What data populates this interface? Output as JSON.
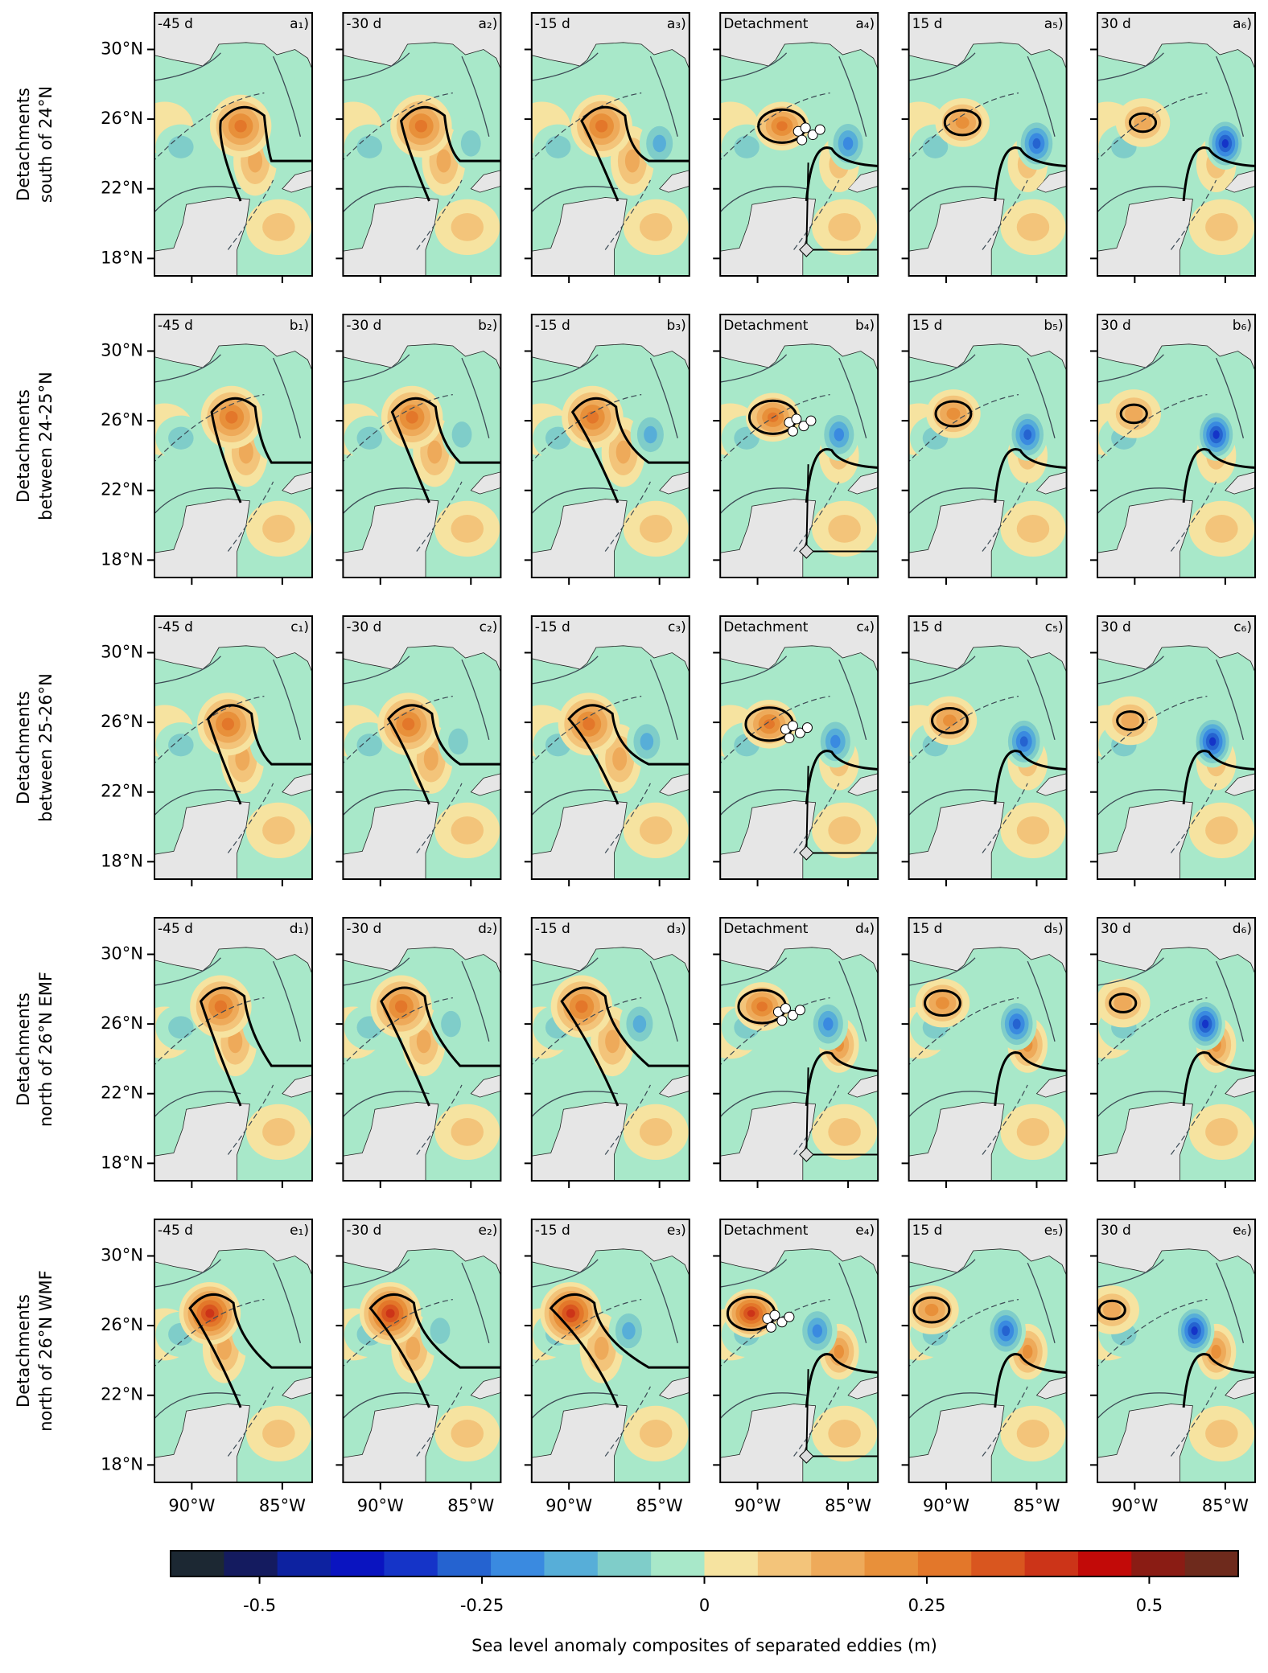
{
  "figure": {
    "rows": [
      {
        "label": [
          "Detachments",
          "south of 24°N"
        ],
        "times": [
          "-45 d",
          "-30 d",
          "-15 d",
          "Detachment",
          "15 d",
          "30 d"
        ],
        "panels": [
          "a₁)",
          "a₂)",
          "a₃)",
          "a₄)",
          "a₅)",
          "a₆)"
        ]
      },
      {
        "label": [
          "Detachments",
          "between 24-25°N"
        ],
        "times": [
          "-45 d",
          "-30 d",
          "-15 d",
          "Detachment",
          "15 d",
          "30 d"
        ],
        "panels": [
          "b₁)",
          "b₂)",
          "b₃)",
          "b₄)",
          "b₅)",
          "b₆)"
        ]
      },
      {
        "label": [
          "Detachments",
          "between 25-26°N"
        ],
        "times": [
          "-45 d",
          "-30 d",
          "-15 d",
          "Detachment",
          "15 d",
          "30 d"
        ],
        "panels": [
          "c₁)",
          "c₂)",
          "c₃)",
          "c₄)",
          "c₅)",
          "c₆)"
        ]
      },
      {
        "label": [
          "Detachments",
          "north of 26°N EMF"
        ],
        "times": [
          "-45 d",
          "-30 d",
          "-15 d",
          "Detachment",
          "15 d",
          "30 d"
        ],
        "panels": [
          "d₁)",
          "d₂)",
          "d₃)",
          "d₄)",
          "d₅)",
          "d₆)"
        ]
      },
      {
        "label": [
          "Detachments",
          "north of 26°N WMF"
        ],
        "times": [
          "-45 d",
          "-30 d",
          "-15 d",
          "Detachment",
          "15 d",
          "30 d"
        ],
        "panels": [
          "e₁)",
          "e₂)",
          "e₃)",
          "e₄)",
          "e₅)",
          "e₆)"
        ]
      }
    ],
    "lat_range": [
      17,
      32.1
    ],
    "lon_range": [
      -92.06,
      -83.35
    ],
    "lat_ticks": [
      {
        "value": 30,
        "label": "30°N"
      },
      {
        "value": 26,
        "label": "26°N"
      },
      {
        "value": 22,
        "label": "22°N"
      },
      {
        "value": 18,
        "label": "18°N"
      }
    ],
    "lon_ticks": [
      {
        "value": -90,
        "label": "90°W"
      },
      {
        "value": -85,
        "label": "85°W"
      }
    ],
    "colorbar": {
      "label": "Sea level anomaly composites of separated eddies (m)",
      "range": [
        -0.6,
        0.6
      ],
      "ticks": [
        -0.5,
        -0.25,
        0,
        0.25,
        0.5
      ],
      "colors": [
        "#1c2833",
        "#141b5f",
        "#0d22a0",
        "#0a14c0",
        "#1534c8",
        "#2563d0",
        "#3a8ae0",
        "#57aed8",
        "#7fcdc9",
        "#a8e8c9",
        "#f6e3a0",
        "#f3c47a",
        "#eeaa5a",
        "#e8903a",
        "#e3772a",
        "#d9561f",
        "#cc3418",
        "#c20a08",
        "#8a1c14",
        "#6e2a1c"
      ]
    }
  }
}
